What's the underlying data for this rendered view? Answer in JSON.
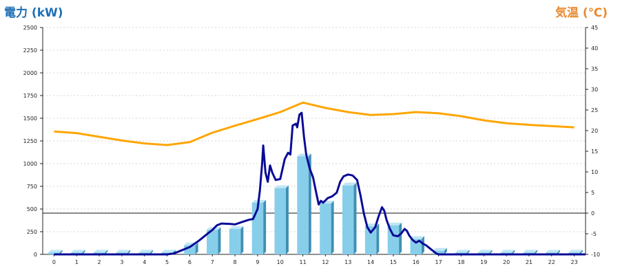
{
  "chart_data": {
    "type": "bar+line",
    "left_axis_title": "電力 (kW)",
    "right_axis_title": "気温 (℃)",
    "left_axis_color": "#1e6fb5",
    "right_axis_color": "#e8892e",
    "x_ticks": [
      "0",
      "1",
      "2",
      "3",
      "4",
      "5",
      "6",
      "7",
      "8",
      "9",
      "10",
      "11",
      "12",
      "13",
      "14",
      "15",
      "16",
      "17",
      "18",
      "19",
      "20",
      "21",
      "22",
      "23"
    ],
    "y_left": {
      "min": 0,
      "max": 2500,
      "ticks": [
        "0",
        "250",
        "500",
        "750",
        "1000",
        "1250",
        "1500",
        "1750",
        "2000",
        "2250",
        "2500"
      ]
    },
    "y_right": {
      "min": -10,
      "max": 45,
      "ticks": [
        "-10",
        "-5",
        "0",
        "5",
        "10",
        "15",
        "20",
        "25",
        "30",
        "35",
        "40",
        "45"
      ]
    },
    "grid": true,
    "bars": {
      "axis": "left",
      "color": "#87ceeb",
      "values": [
        20,
        20,
        20,
        20,
        20,
        20,
        100,
        270,
        280,
        570,
        730,
        1080,
        560,
        760,
        310,
        320,
        170,
        40,
        20,
        20,
        20,
        20,
        20,
        20
      ]
    },
    "power_line": {
      "axis": "left",
      "color": "#0a0a96",
      "points": [
        [
          0,
          0
        ],
        [
          5,
          0
        ],
        [
          5.3,
          10
        ],
        [
          5.6,
          40
        ],
        [
          6,
          80
        ],
        [
          6.4,
          150
        ],
        [
          6.8,
          230
        ],
        [
          7,
          270
        ],
        [
          7.2,
          320
        ],
        [
          7.4,
          340
        ],
        [
          7.8,
          335
        ],
        [
          8,
          330
        ],
        [
          8.3,
          355
        ],
        [
          8.6,
          380
        ],
        [
          8.8,
          390
        ],
        [
          9,
          500
        ],
        [
          9.1,
          700
        ],
        [
          9.2,
          1000
        ],
        [
          9.25,
          1200
        ],
        [
          9.35,
          900
        ],
        [
          9.45,
          800
        ],
        [
          9.55,
          980
        ],
        [
          9.65,
          900
        ],
        [
          9.8,
          820
        ],
        [
          10,
          830
        ],
        [
          10.2,
          1050
        ],
        [
          10.35,
          1120
        ],
        [
          10.45,
          1100
        ],
        [
          10.55,
          1420
        ],
        [
          10.7,
          1440
        ],
        [
          10.75,
          1400
        ],
        [
          10.85,
          1540
        ],
        [
          10.95,
          1560
        ],
        [
          11.05,
          1300
        ],
        [
          11.15,
          1100
        ],
        [
          11.3,
          950
        ],
        [
          11.45,
          850
        ],
        [
          11.55,
          730
        ],
        [
          11.7,
          550
        ],
        [
          11.8,
          590
        ],
        [
          11.9,
          570
        ],
        [
          12.1,
          620
        ],
        [
          12.3,
          640
        ],
        [
          12.5,
          680
        ],
        [
          12.65,
          800
        ],
        [
          12.8,
          860
        ],
        [
          13,
          880
        ],
        [
          13.2,
          870
        ],
        [
          13.4,
          820
        ],
        [
          13.55,
          650
        ],
        [
          13.7,
          450
        ],
        [
          13.85,
          300
        ],
        [
          14,
          240
        ],
        [
          14.2,
          300
        ],
        [
          14.35,
          420
        ],
        [
          14.5,
          520
        ],
        [
          14.6,
          480
        ],
        [
          14.7,
          380
        ],
        [
          14.85,
          280
        ],
        [
          15,
          210
        ],
        [
          15.2,
          200
        ],
        [
          15.35,
          230
        ],
        [
          15.5,
          280
        ],
        [
          15.6,
          260
        ],
        [
          15.7,
          210
        ],
        [
          15.85,
          160
        ],
        [
          16,
          130
        ],
        [
          16.15,
          150
        ],
        [
          16.3,
          120
        ],
        [
          16.45,
          100
        ],
        [
          16.7,
          50
        ],
        [
          16.9,
          10
        ],
        [
          17,
          0
        ],
        [
          23.5,
          0
        ]
      ]
    },
    "temperature_line": {
      "axis": "right",
      "color": "#ffa500",
      "points": [
        [
          0,
          19.8
        ],
        [
          1,
          19.4
        ],
        [
          2,
          18.5
        ],
        [
          3,
          17.6
        ],
        [
          4,
          16.9
        ],
        [
          5,
          16.5
        ],
        [
          6,
          17.2
        ],
        [
          7,
          19.5
        ],
        [
          8,
          21.2
        ],
        [
          9,
          22.8
        ],
        [
          10,
          24.5
        ],
        [
          11,
          26.8
        ],
        [
          12,
          25.5
        ],
        [
          13,
          24.5
        ],
        [
          14,
          23.8
        ],
        [
          15,
          24.0
        ],
        [
          16,
          24.5
        ],
        [
          17,
          24.2
        ],
        [
          18,
          23.5
        ],
        [
          19,
          22.5
        ],
        [
          20,
          21.8
        ],
        [
          21,
          21.4
        ],
        [
          22,
          21.1
        ],
        [
          23,
          20.8
        ]
      ]
    }
  }
}
